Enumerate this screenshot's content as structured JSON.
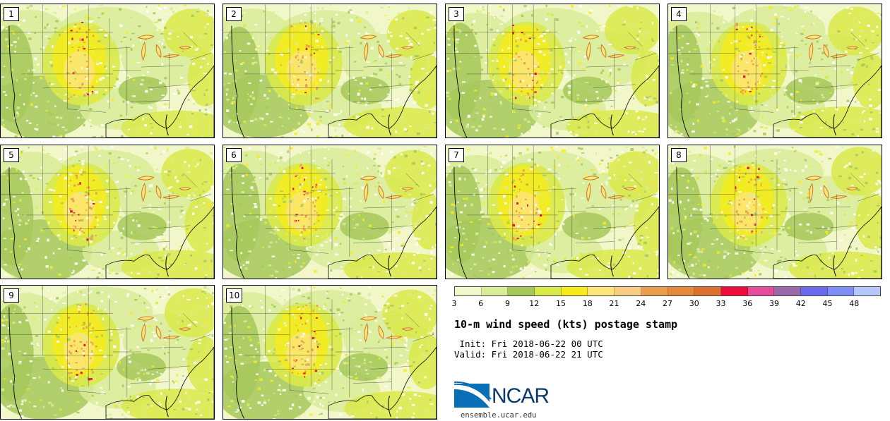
{
  "panels": [
    {
      "label": "1"
    },
    {
      "label": "2"
    },
    {
      "label": "3"
    },
    {
      "label": "4"
    },
    {
      "label": "5"
    },
    {
      "label": "6"
    },
    {
      "label": "7"
    },
    {
      "label": "8"
    },
    {
      "label": "9"
    },
    {
      "label": "10"
    }
  ],
  "colorbar": {
    "ticks": [
      "3",
      "6",
      "9",
      "12",
      "15",
      "18",
      "21",
      "24",
      "27",
      "30",
      "33",
      "36",
      "39",
      "42",
      "45",
      "48"
    ],
    "colors": [
      "#f1f7c9",
      "#d9ec9a",
      "#a6c85a",
      "#d9e94a",
      "#f6ec1c",
      "#fde57a",
      "#f6cb82",
      "#ea9e4e",
      "#e58a3a",
      "#dd7230",
      "#ee0c3c",
      "#e54c9a",
      "#9a68a8",
      "#6a6aee",
      "#7e8ef6",
      "#b4c6fa"
    ]
  },
  "title": "10-m wind speed (kts) postage stamp",
  "init": " Init: Fri 2018-06-22 00 UTC",
  "valid": "Valid: Fri 2018-06-22 21 UTC",
  "logo": {
    "name": "NCAR",
    "colors": {
      "blue": "#0b6fb8",
      "navy": "#0a3a6a"
    }
  },
  "site": "ensemble.ucar.edu",
  "map_colors": {
    "pale": "#f1f7c9",
    "light": "#d9ec9a",
    "green": "#a6c85a",
    "lime": "#d9e94a",
    "yellow": "#f6ec1c",
    "tan": "#fde57a",
    "orange": "#ea9e4e",
    "red": "#ee0c3c",
    "white": "#ffffff"
  }
}
